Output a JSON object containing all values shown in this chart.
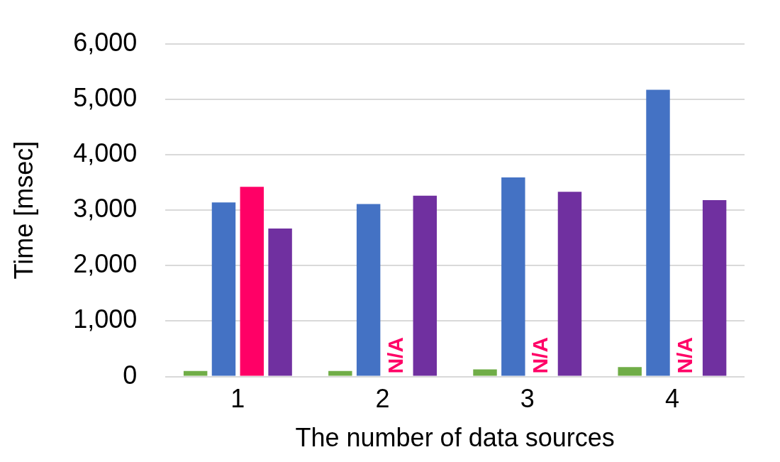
{
  "chart_data": {
    "type": "bar",
    "xlabel": "The number of data sources",
    "ylabel": "Time [msec]",
    "categories": [
      "1",
      "2",
      "3",
      "4"
    ],
    "series": [
      {
        "color": "#70ad47",
        "values": [
          100,
          100,
          130,
          170
        ]
      },
      {
        "color": "#4472c4",
        "values": [
          3140,
          3110,
          3590,
          5170
        ]
      },
      {
        "color": "#ff0066",
        "values": [
          3420,
          null,
          null,
          null
        ]
      },
      {
        "color": "#7030a0",
        "values": [
          2670,
          3260,
          3330,
          3180
        ]
      }
    ],
    "ylim": [
      0,
      6000
    ],
    "yticks": [
      {
        "value": 0,
        "label": "0"
      },
      {
        "value": 1000,
        "label": "1,000"
      },
      {
        "value": 2000,
        "label": "2,000"
      },
      {
        "value": 3000,
        "label": "3,000"
      },
      {
        "value": 4000,
        "label": "4,000"
      },
      {
        "value": 5000,
        "label": "5,000"
      },
      {
        "value": 6000,
        "label": "6,000"
      }
    ],
    "grid": "y",
    "legend": false,
    "annotations": [
      {
        "text": "N/A",
        "x": "2",
        "y": 0
      },
      {
        "text": "N/A",
        "x": "3",
        "y": 0
      },
      {
        "text": "N/A",
        "x": "4",
        "y": 0
      }
    ]
  }
}
